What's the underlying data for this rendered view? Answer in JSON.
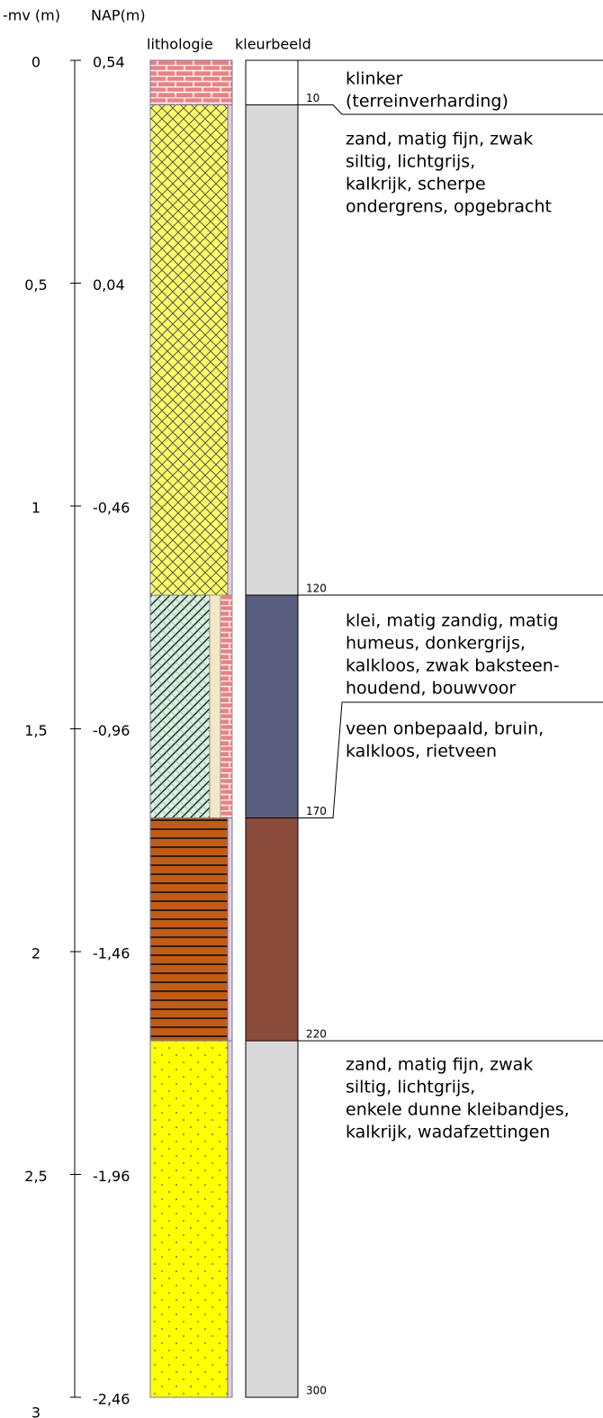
{
  "headers": {
    "depth": "-mv (m)",
    "nap": "NAP(m)",
    "lithology": "lithologie",
    "color": "kleurbeeld"
  },
  "scale": [
    {
      "depth": "0",
      "nap": "0,54"
    },
    {
      "depth": "0,5",
      "nap": "0,04"
    },
    {
      "depth": "1",
      "nap": "-0,46"
    },
    {
      "depth": "1,5",
      "nap": "-0,96"
    },
    {
      "depth": "2",
      "nap": "-1,46"
    },
    {
      "depth": "2,5",
      "nap": "-1,96"
    },
    {
      "depth": "3",
      "nap": "-2,46"
    }
  ],
  "boundaries": [
    10,
    120,
    170,
    220,
    300
  ],
  "layers": [
    {
      "pattern": "brick",
      "color": "#ffffff"
    },
    {
      "pattern": "cross",
      "color": "#d9d9d9"
    },
    {
      "pattern": "clay",
      "color": "#5b5f7f"
    },
    {
      "pattern": "peat",
      "color": "#8b4c3b"
    },
    {
      "pattern": "dots",
      "color": "#d9d9d9"
    }
  ],
  "descriptions": [
    [
      "klinker",
      "(terreinverharding)"
    ],
    [
      "zand, matig fijn, zwak",
      "siltig, lichtgrijs,",
      "kalkrijk, scherpe",
      "ondergrens, opgebracht"
    ],
    [
      "klei, matig zandig, matig",
      "humeus, donkergrijs,",
      "kalkloos, zwak baksteen-",
      "houdend, bouwvoor"
    ],
    [
      "veen onbepaald, bruin,",
      "kalkloos, rietveen"
    ],
    [
      "zand, matig fijn, zwak",
      "siltig, lichtgrijs,",
      "enkele dunne kleibandjes,",
      "kalkrijk, wadafzettingen"
    ]
  ]
}
